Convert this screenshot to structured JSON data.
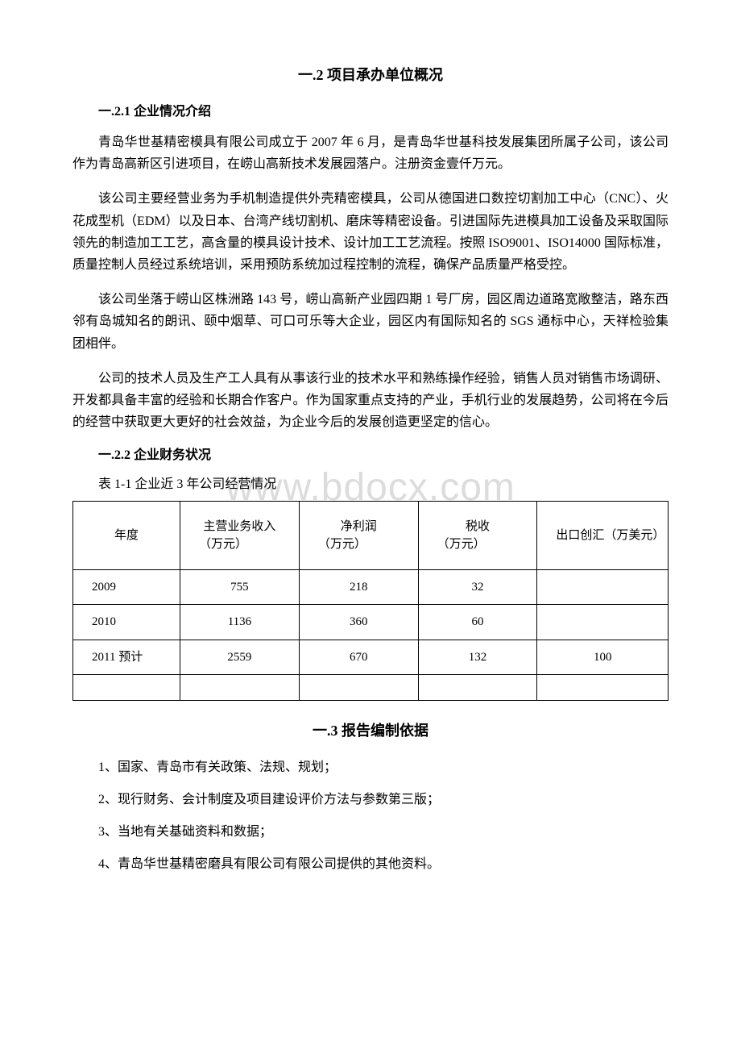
{
  "watermark": "www.bdocx.com",
  "section_1_2": {
    "title": "一.2 项目承办单位概况",
    "sub_2_1": {
      "title": "一.2.1 企业情况介绍",
      "p1": "青岛华世基精密模具有限公司成立于 2007 年 6 月，是青岛华世基科技发展集团所属子公司，该公司作为青岛高新区引进项目，在崂山高新技术发展园落户。注册资金壹仟万元。",
      "p2": "该公司主要经营业务为手机制造提供外壳精密模具，公司从德国进口数控切割加工中心（CNC）、火花成型机（EDM）以及日本、台湾产线切割机、磨床等精密设备。引进国际先进模具加工设备及采取国际领先的制造加工工艺，高含量的模具设计技术、设计加工工艺流程。按照 ISO9001、ISO14000 国际标准，质量控制人员经过系统培训，采用预防系统加过程控制的流程，确保产品质量严格受控。",
      "p3": "该公司坐落于崂山区株洲路 143 号，崂山高新产业园四期 1 号厂房，园区周边道路宽敞整洁，路东西邻有岛城知名的朗讯、颐中烟草、可口可乐等大企业，园区内有国际知名的 SGS 通标中心，天祥检验集团相伴。",
      "p4": "公司的技术人员及生产工人具有从事该行业的技术水平和熟练操作经验，销售人员对销售市场调研、开发都具备丰富的经验和长期合作客户。作为国家重点支持的产业，手机行业的发展趋势，公司将在今后的经营中获取更大更好的社会效益，为企业今后的发展创造更坚定的信心。"
    },
    "sub_2_2": {
      "title": "一.2.2 企业财务状况",
      "table_caption": "表 1-1 企业近 3 年公司经营情况",
      "table": {
        "headers": {
          "year": "年度",
          "revenue_label": "主营业务收入",
          "revenue_unit": "（万元）",
          "profit_label": "净利润",
          "profit_unit": "（万元）",
          "tax_label": "税收",
          "tax_unit": "（万元）",
          "export_label": "出口创汇（万美元）"
        },
        "rows": [
          {
            "year": "2009",
            "revenue": "755",
            "profit": "218",
            "tax": "32",
            "export": ""
          },
          {
            "year": "2010",
            "revenue": "1136",
            "profit": "360",
            "tax": "60",
            "export": ""
          },
          {
            "year": "2011 预计",
            "revenue": "2559",
            "profit": "670",
            "tax": "132",
            "export": "100"
          }
        ]
      }
    }
  },
  "section_1_3": {
    "title": "一.3 报告编制依据",
    "items": [
      "1、国家、青岛市有关政策、法规、规划；",
      "2、现行财务、会计制度及项目建设评价方法与参数第三版；",
      "3、当地有关基础资料和数据；",
      "4、青岛华世基精密磨具有限公司有限公司提供的其他资料。"
    ]
  }
}
